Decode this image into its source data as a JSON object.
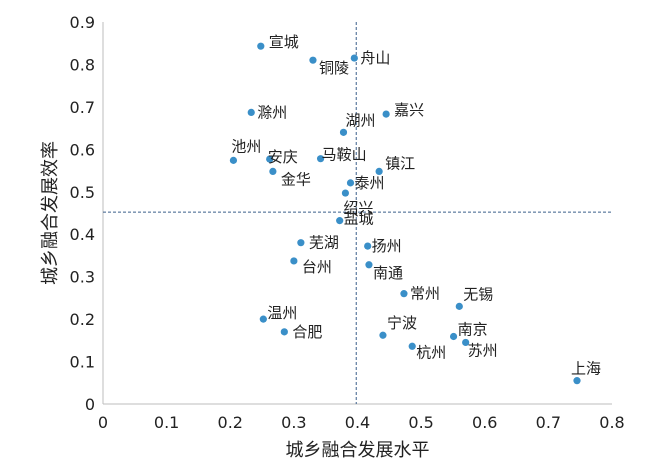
{
  "chart_data": {
    "type": "scatter",
    "title": "",
    "xlabel": "城乡融合发展水平",
    "ylabel": "城乡融合发展效率",
    "xlim": [
      0,
      0.8
    ],
    "ylim": [
      0,
      0.9
    ],
    "xticks": [
      "0",
      "0.1",
      "0.2",
      "0.3",
      "0.4",
      "0.5",
      "0.6",
      "0.7",
      "0.8"
    ],
    "yticks": [
      "0",
      "0.1",
      "0.2",
      "0.3",
      "0.4",
      "0.5",
      "0.6",
      "0.7",
      "0.8",
      "0.9"
    ],
    "reference_lines": {
      "x": 0.398,
      "y": 0.452
    },
    "grid": false,
    "legend": "none",
    "point_color": "#3a8fc8",
    "points": [
      {
        "name": "宣城",
        "x": 0.248,
        "y": 0.843
      },
      {
        "name": "铜陵",
        "x": 0.33,
        "y": 0.81
      },
      {
        "name": "舟山",
        "x": 0.395,
        "y": 0.815
      },
      {
        "name": "滁州",
        "x": 0.233,
        "y": 0.687
      },
      {
        "name": "嘉兴",
        "x": 0.445,
        "y": 0.683
      },
      {
        "name": "湖州",
        "x": 0.378,
        "y": 0.64
      },
      {
        "name": "池州",
        "x": 0.205,
        "y": 0.574
      },
      {
        "name": "安庆",
        "x": 0.262,
        "y": 0.577
      },
      {
        "name": "马鞍山",
        "x": 0.342,
        "y": 0.578
      },
      {
        "name": "镇江",
        "x": 0.434,
        "y": 0.548
      },
      {
        "name": "金华",
        "x": 0.267,
        "y": 0.548
      },
      {
        "name": "泰州",
        "x": 0.389,
        "y": 0.521
      },
      {
        "name": "绍兴",
        "x": 0.381,
        "y": 0.497
      },
      {
        "name": "盐城",
        "x": 0.372,
        "y": 0.432
      },
      {
        "name": "芜湖",
        "x": 0.311,
        "y": 0.38
      },
      {
        "name": "扬州",
        "x": 0.416,
        "y": 0.372
      },
      {
        "name": "台州",
        "x": 0.3,
        "y": 0.337
      },
      {
        "name": "南通",
        "x": 0.418,
        "y": 0.328
      },
      {
        "name": "常州",
        "x": 0.473,
        "y": 0.26
      },
      {
        "name": "无锡",
        "x": 0.56,
        "y": 0.23
      },
      {
        "name": "温州",
        "x": 0.252,
        "y": 0.2
      },
      {
        "name": "合肥",
        "x": 0.285,
        "y": 0.17
      },
      {
        "name": "宁波",
        "x": 0.44,
        "y": 0.162
      },
      {
        "name": "南京",
        "x": 0.551,
        "y": 0.159
      },
      {
        "name": "苏州",
        "x": 0.57,
        "y": 0.145
      },
      {
        "name": "杭州",
        "x": 0.486,
        "y": 0.136
      },
      {
        "name": "上海",
        "x": 0.745,
        "y": 0.055
      }
    ]
  }
}
